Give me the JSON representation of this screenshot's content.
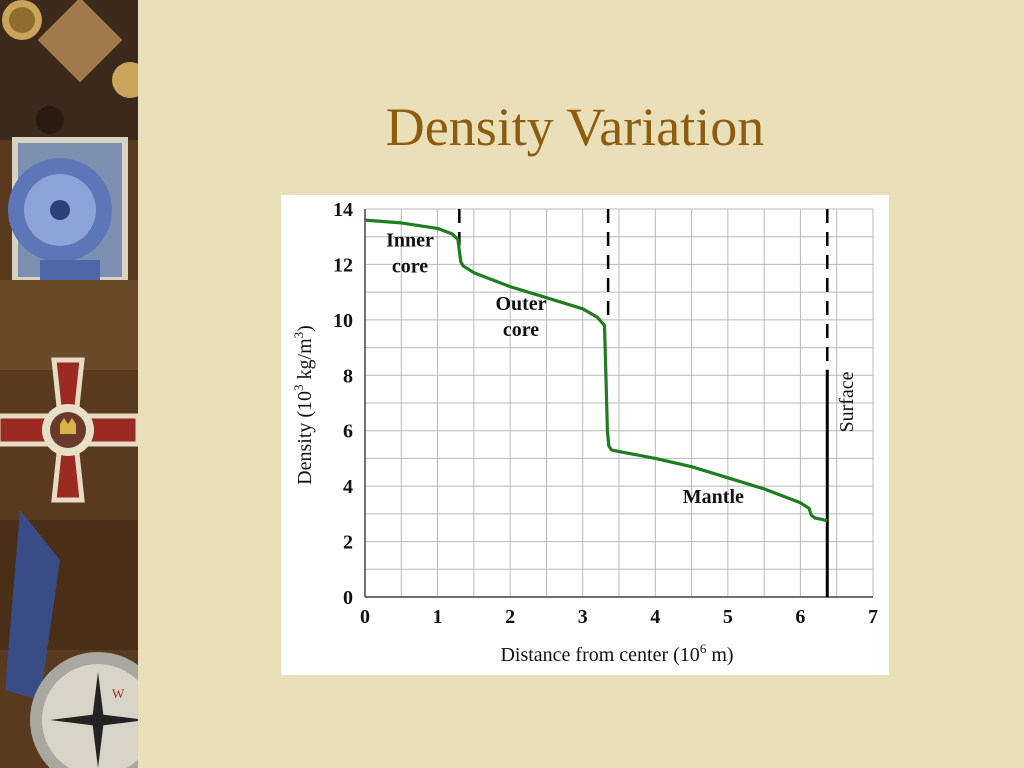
{
  "slide": {
    "title": "Density Variation"
  },
  "decor": {
    "side_image": "collage of ribboned medal, cross, coins and compass"
  },
  "colors": {
    "background": "#e9e0b9",
    "title": "#8e5c10",
    "curve": "#1e7d1e"
  },
  "chart_data": {
    "type": "line",
    "title": "",
    "xlabel": "Distance from center (10",
    "xlabel_sup": "6",
    "xlabel_end": " m)",
    "ylabel": "Density (10",
    "ylabel_sup1": "3",
    "ylabel_mid": " kg/m",
    "ylabel_sup2": "3",
    "ylabel_end": ")",
    "xlim": [
      0,
      7
    ],
    "ylim": [
      0,
      14
    ],
    "xticks": [
      "0",
      "1",
      "2",
      "3",
      "4",
      "5",
      "6",
      "7"
    ],
    "yticks": [
      "0",
      "2",
      "4",
      "6",
      "8",
      "10",
      "12",
      "14"
    ],
    "grid": true,
    "series": [
      {
        "x": [
          0,
          0.5,
          1.0,
          1.2,
          1.28,
          1.3,
          1.32,
          1.35,
          1.5,
          2.0,
          2.5,
          3.0,
          3.2,
          3.3,
          3.32,
          3.34,
          3.36,
          3.4,
          3.6,
          4.0,
          4.5,
          5.0,
          5.5,
          6.0,
          6.12,
          6.15,
          6.2,
          6.3,
          6.37
        ],
        "y": [
          13.6,
          13.5,
          13.3,
          13.1,
          12.9,
          12.5,
          12.1,
          11.95,
          11.7,
          11.2,
          10.8,
          10.4,
          10.1,
          9.8,
          8.0,
          6.0,
          5.45,
          5.3,
          5.2,
          5.0,
          4.7,
          4.3,
          3.9,
          3.4,
          3.2,
          2.95,
          2.85,
          2.8,
          2.75
        ]
      }
    ],
    "boundaries": [
      {
        "x": 1.3,
        "style": "dashed",
        "y_top": 14,
        "y_bottom": 12.5
      },
      {
        "x": 3.35,
        "style": "dashed",
        "y_top": 14,
        "y_bottom": 10
      },
      {
        "x": 6.37,
        "style": "dashed",
        "y_top": 14,
        "y_bottom": 8.2
      },
      {
        "x": 6.37,
        "style": "solid",
        "y_top": 8.2,
        "y_bottom": 0
      }
    ],
    "annotations": [
      {
        "lines": [
          "Inner",
          "core"
        ],
        "x": 0.62,
        "y": 12.65
      },
      {
        "lines": [
          "Outer",
          "core"
        ],
        "x": 2.15,
        "y": 10.35
      },
      {
        "lines": [
          "Mantle"
        ],
        "x": 4.8,
        "y": 3.4
      }
    ],
    "surface_label": "Surface"
  }
}
